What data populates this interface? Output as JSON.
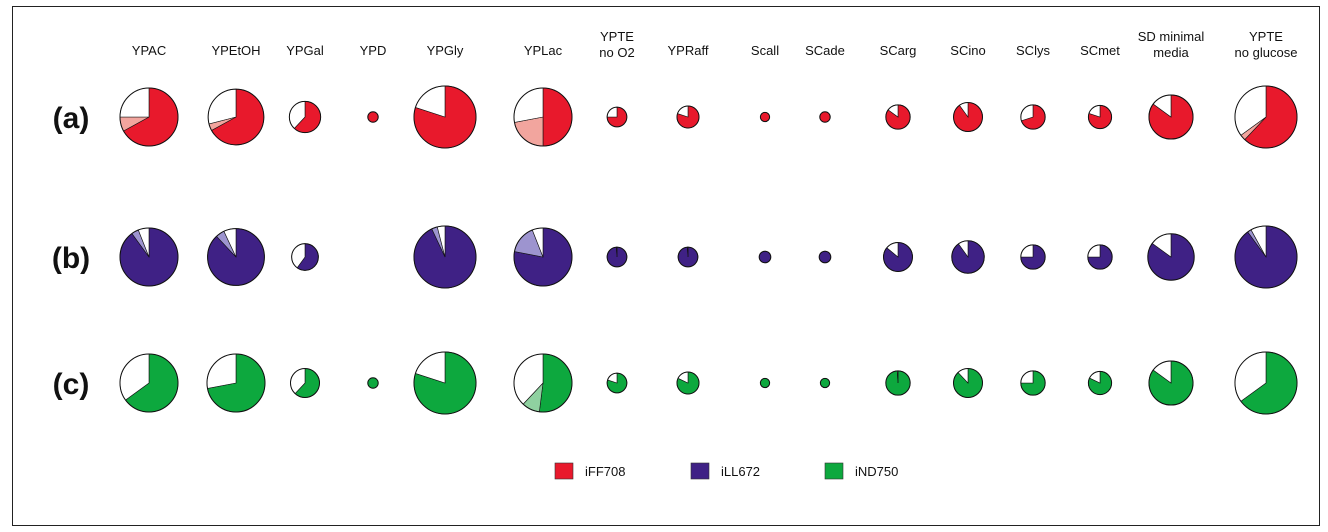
{
  "chart_data": {
    "type": "pie",
    "columns": [
      {
        "label": "YPAC"
      },
      {
        "label": "YPEtOH"
      },
      {
        "label": "YPGal"
      },
      {
        "label": "YPD"
      },
      {
        "label": "YPGly"
      },
      {
        "label": "YPLac"
      },
      {
        "label": "YPTE\nno O2"
      },
      {
        "label": "YPRaff"
      },
      {
        "label": "Scall"
      },
      {
        "label": "SCade"
      },
      {
        "label": "SCarg"
      },
      {
        "label": "SCino"
      },
      {
        "label": "SClys"
      },
      {
        "label": "SCmet"
      },
      {
        "label": "SD minimal\nmedia"
      },
      {
        "label": "YPTE\nno glucose"
      }
    ],
    "rows": [
      {
        "label": "(a)",
        "model": "iFF708",
        "colors": {
          "main": "#E8192C",
          "light": "#F2A59E",
          "rest": "#ffffff"
        },
        "pies": [
          {
            "size": 1.0,
            "main": 0.67,
            "light": 0.08,
            "rest": 0.25
          },
          {
            "size": 0.96,
            "main": 0.67,
            "light": 0.04,
            "rest": 0.29
          },
          {
            "size": 0.54,
            "main": 0.62,
            "light": 0.0,
            "rest": 0.38
          },
          {
            "size": 0.18,
            "main": 1.0,
            "light": 0.0,
            "rest": 0.0
          },
          {
            "size": 1.07,
            "main": 0.8,
            "light": 0.0,
            "rest": 0.2
          },
          {
            "size": 1.0,
            "main": 0.5,
            "light": 0.22,
            "rest": 0.28
          },
          {
            "size": 0.34,
            "main": 0.75,
            "light": 0.0,
            "rest": 0.25
          },
          {
            "size": 0.38,
            "main": 0.8,
            "light": 0.0,
            "rest": 0.2
          },
          {
            "size": 0.16,
            "main": 1.0,
            "light": 0.0,
            "rest": 0.0
          },
          {
            "size": 0.18,
            "main": 1.0,
            "light": 0.0,
            "rest": 0.0
          },
          {
            "size": 0.42,
            "main": 0.85,
            "light": 0.0,
            "rest": 0.15
          },
          {
            "size": 0.5,
            "main": 0.9,
            "light": 0.0,
            "rest": 0.1
          },
          {
            "size": 0.42,
            "main": 0.7,
            "light": 0.0,
            "rest": 0.3
          },
          {
            "size": 0.4,
            "main": 0.8,
            "light": 0.0,
            "rest": 0.2
          },
          {
            "size": 0.76,
            "main": 0.85,
            "light": 0.0,
            "rest": 0.15
          },
          {
            "size": 1.07,
            "main": 0.62,
            "light": 0.03,
            "rest": 0.35
          }
        ]
      },
      {
        "label": "(b)",
        "model": "iLL672",
        "colors": {
          "main": "#3F2185",
          "light": "#9D94CF",
          "rest": "#ffffff"
        },
        "pies": [
          {
            "size": 1.0,
            "main": 0.9,
            "light": 0.04,
            "rest": 0.06
          },
          {
            "size": 0.98,
            "main": 0.88,
            "light": 0.05,
            "rest": 0.07
          },
          {
            "size": 0.46,
            "main": 0.6,
            "light": 0.0,
            "rest": 0.4
          },
          {
            "size": 0.0,
            "main": 0.0,
            "light": 0.0,
            "rest": 0.0
          },
          {
            "size": 1.07,
            "main": 0.93,
            "light": 0.03,
            "rest": 0.04
          },
          {
            "size": 1.0,
            "main": 0.78,
            "light": 0.16,
            "rest": 0.06
          },
          {
            "size": 0.34,
            "main": 0.99,
            "light": 0.0,
            "rest": 0.01
          },
          {
            "size": 0.34,
            "main": 0.99,
            "light": 0.0,
            "rest": 0.01
          },
          {
            "size": 0.2,
            "main": 1.0,
            "light": 0.0,
            "rest": 0.0
          },
          {
            "size": 0.2,
            "main": 1.0,
            "light": 0.0,
            "rest": 0.0
          },
          {
            "size": 0.5,
            "main": 0.86,
            "light": 0.0,
            "rest": 0.14
          },
          {
            "size": 0.56,
            "main": 0.9,
            "light": 0.0,
            "rest": 0.1
          },
          {
            "size": 0.42,
            "main": 0.75,
            "light": 0.0,
            "rest": 0.25
          },
          {
            "size": 0.42,
            "main": 0.75,
            "light": 0.0,
            "rest": 0.25
          },
          {
            "size": 0.8,
            "main": 0.85,
            "light": 0.0,
            "rest": 0.15
          },
          {
            "size": 1.07,
            "main": 0.9,
            "light": 0.02,
            "rest": 0.08
          }
        ]
      },
      {
        "label": "(c)",
        "model": "iND750",
        "colors": {
          "main": "#0DA83E",
          "light": "#8FD1A0",
          "rest": "#ffffff"
        },
        "pies": [
          {
            "size": 1.0,
            "main": 0.65,
            "light": 0.0,
            "rest": 0.35
          },
          {
            "size": 1.0,
            "main": 0.72,
            "light": 0.0,
            "rest": 0.28
          },
          {
            "size": 0.5,
            "main": 0.62,
            "light": 0.0,
            "rest": 0.38
          },
          {
            "size": 0.18,
            "main": 1.0,
            "light": 0.0,
            "rest": 0.0
          },
          {
            "size": 1.07,
            "main": 0.8,
            "light": 0.0,
            "rest": 0.2
          },
          {
            "size": 1.0,
            "main": 0.52,
            "light": 0.1,
            "rest": 0.38
          },
          {
            "size": 0.34,
            "main": 0.8,
            "light": 0.0,
            "rest": 0.2
          },
          {
            "size": 0.38,
            "main": 0.82,
            "light": 0.0,
            "rest": 0.18
          },
          {
            "size": 0.16,
            "main": 1.0,
            "light": 0.0,
            "rest": 0.0
          },
          {
            "size": 0.16,
            "main": 1.0,
            "light": 0.0,
            "rest": 0.0
          },
          {
            "size": 0.42,
            "main": 0.99,
            "light": 0.0,
            "rest": 0.01
          },
          {
            "size": 0.5,
            "main": 0.88,
            "light": 0.0,
            "rest": 0.12
          },
          {
            "size": 0.42,
            "main": 0.75,
            "light": 0.0,
            "rest": 0.25
          },
          {
            "size": 0.4,
            "main": 0.82,
            "light": 0.0,
            "rest": 0.18
          },
          {
            "size": 0.76,
            "main": 0.85,
            "light": 0.0,
            "rest": 0.15
          },
          {
            "size": 1.07,
            "main": 0.65,
            "light": 0.0,
            "rest": 0.35
          }
        ]
      }
    ]
  },
  "legend": {
    "items": [
      {
        "label": "iFF708",
        "color": "#E8192C"
      },
      {
        "label": "iLL672",
        "color": "#3F2185"
      },
      {
        "label": "iND750",
        "color": "#0DA83E"
      }
    ]
  }
}
